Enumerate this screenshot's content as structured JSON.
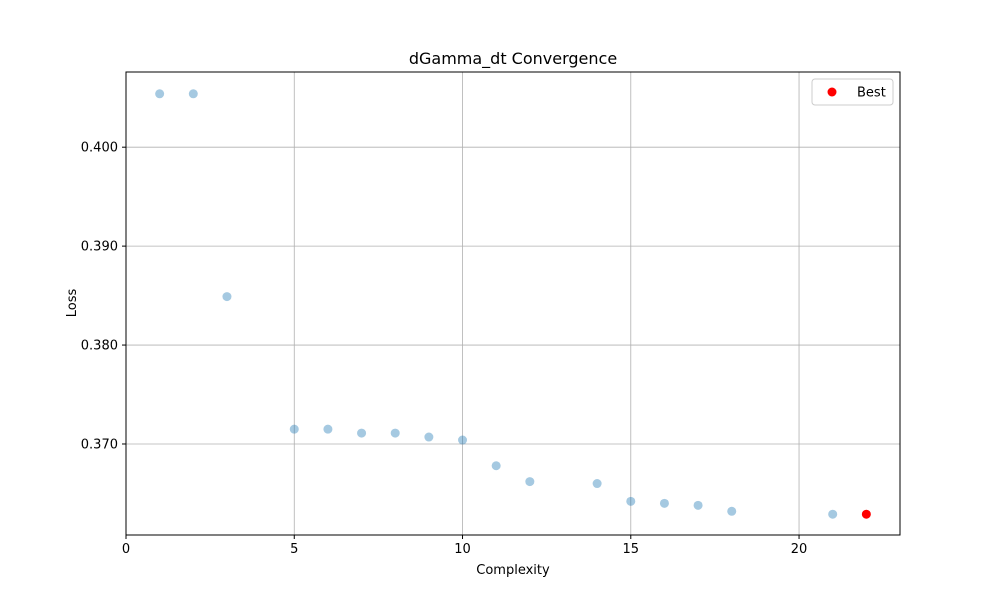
{
  "chart_data": {
    "type": "scatter",
    "title": "dGamma_dt Convergence",
    "xlabel": "Complexity",
    "ylabel": "Loss",
    "xlim": [
      0,
      23
    ],
    "ylim": [
      0.3608,
      0.4076
    ],
    "xticks": [
      0,
      5,
      10,
      15,
      20
    ],
    "yticks": [
      0.37,
      0.38,
      0.39,
      0.4
    ],
    "xtick_labels": [
      "0",
      "5",
      "10",
      "15",
      "20"
    ],
    "ytick_labels": [
      "0.370",
      "0.380",
      "0.390",
      "0.400"
    ],
    "grid": true,
    "legend_position": "top-right",
    "series": [
      {
        "role": "all",
        "color": "#1f77b4",
        "alpha": 0.4,
        "x": [
          1,
          2,
          3,
          5,
          6,
          7,
          8,
          9,
          10,
          11,
          12,
          14,
          15,
          16,
          17,
          18,
          21
        ],
        "y": [
          0.4054,
          0.4054,
          0.3849,
          0.3715,
          0.3715,
          0.3711,
          0.3711,
          0.3707,
          0.3704,
          0.3678,
          0.3662,
          0.366,
          0.3642,
          0.364,
          0.3638,
          0.3632,
          0.3629
        ]
      },
      {
        "name": "Best",
        "color": "#ff0000",
        "alpha": 1.0,
        "x": [
          22
        ],
        "y": [
          0.3629
        ]
      }
    ]
  }
}
